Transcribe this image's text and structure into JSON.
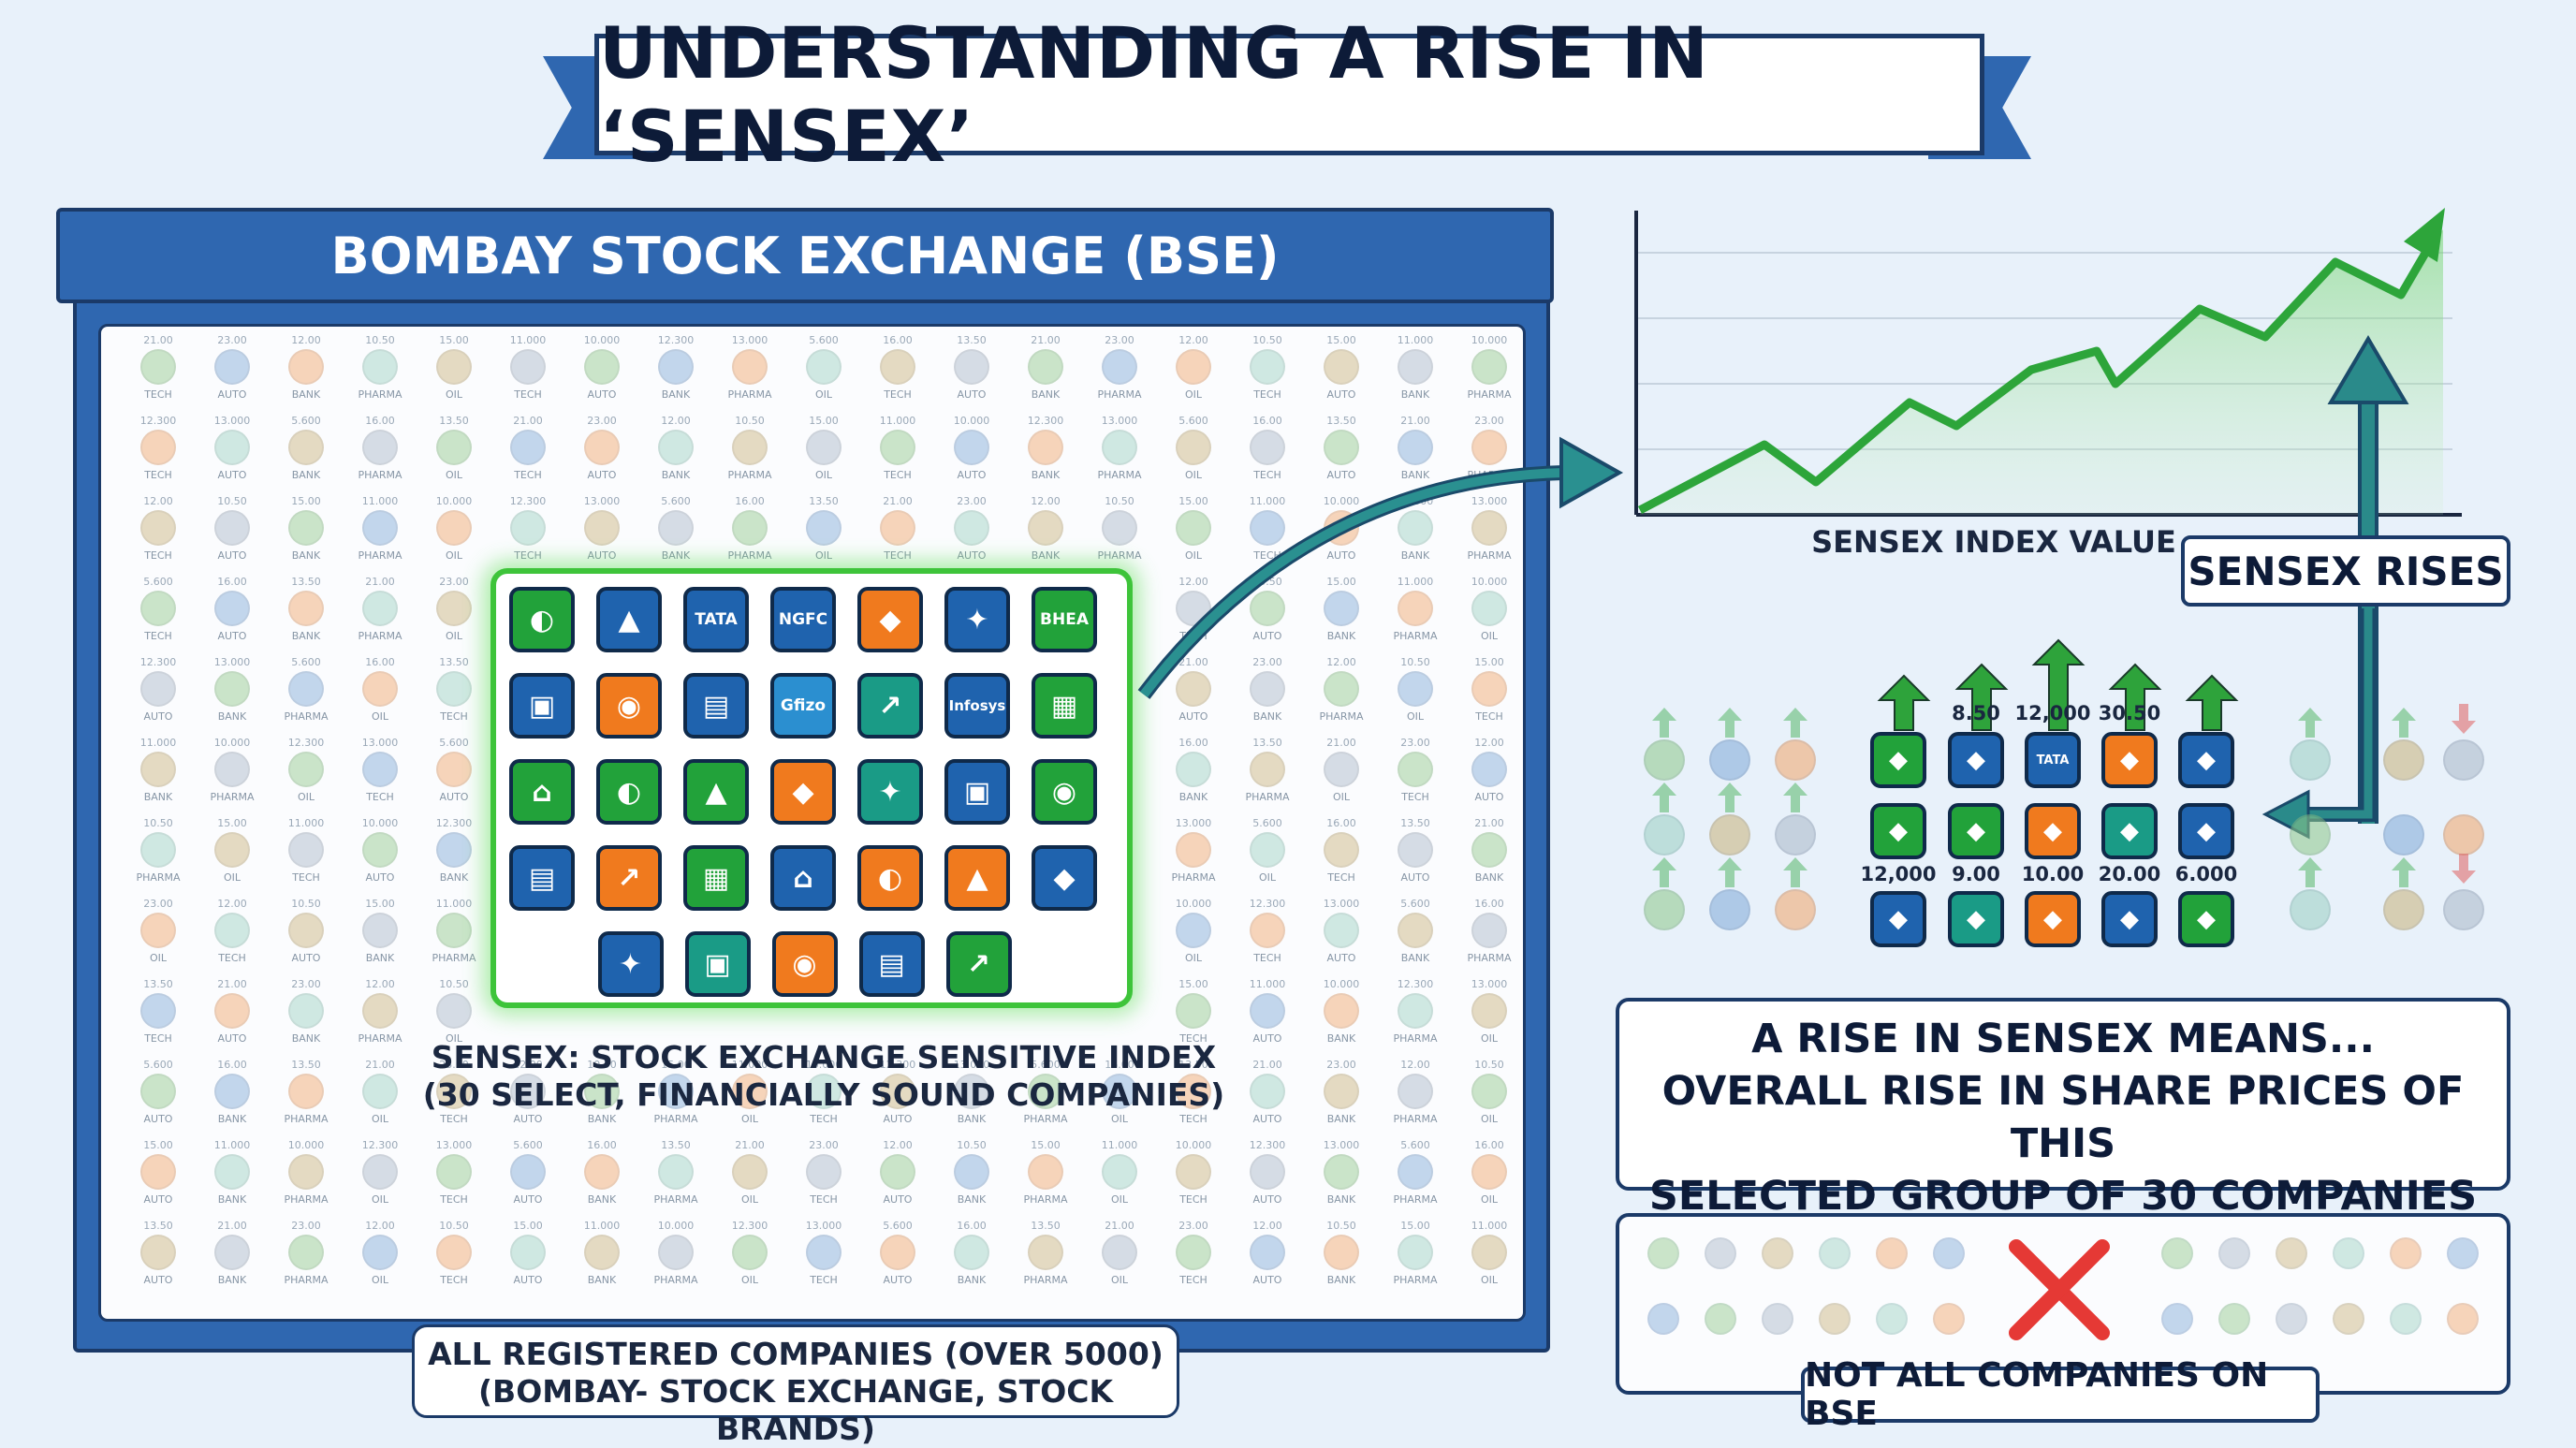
{
  "title": "UNDERSTANDING A RISE IN ‘SENSEX’",
  "bse": {
    "header": "BOMBAY STOCK EXCHANGE (BSE)",
    "caption_line1": "ALL REGISTERED COMPANIES (OVER 5000)",
    "caption_line2": "(BOMBAY- STOCK EXCHANGE, STOCK BRANDS)",
    "sector_labels": [
      "TECH",
      "AUTO",
      "BANK",
      "PHARMA",
      "OIL"
    ],
    "sample_values": [
      "21.00",
      "23.00",
      "12.00",
      "10.50",
      "15.00",
      "11.000",
      "10.000",
      "12.300",
      "13.000",
      "5.600",
      "16.00",
      "13.50"
    ]
  },
  "sensex": {
    "caption_line1": "SENSEX: STOCK EXCHANGE SENSITIVE INDEX",
    "caption_line2": "(30 SELECT, FINANCIALLY SOUND COMPANIES)",
    "tile_texts": [
      "TATA",
      "NGFC",
      "BHEA",
      "Gfizo",
      "Infosys"
    ],
    "tile_colors": {
      "green": "#22a23a",
      "blue": "#1f63ae",
      "orange": "#f07a1e",
      "teal": "#1a9b86",
      "light_blue": "#2b8fd0"
    }
  },
  "chart": {
    "label": "SENSEX INDEX VALUE",
    "badge": "SENSEX RISES",
    "line_color": "#2da53a",
    "arrow_color": "#2a8a8a"
  },
  "movers": {
    "top_values": [
      "8.50",
      "12,000",
      "30.50"
    ],
    "bottom_values": [
      "12,000",
      "9.00",
      "10.00",
      "20.00",
      "6.000"
    ],
    "top_tile_text": "TATA"
  },
  "meaning": {
    "line1": "A RISE IN SENSEX MEANS...",
    "line2": "OVERALL RISE IN SHARE PRICES OF THIS",
    "line3": "SELECTED GROUP OF 30 COMPANIES"
  },
  "not_all": {
    "label": "NOT ALL COMPANIES ON BSE",
    "cross_color": "#e53935"
  }
}
